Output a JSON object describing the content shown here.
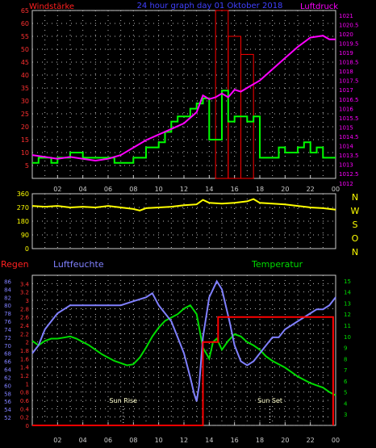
{
  "chart_data": [
    {
      "type": "line",
      "title": "24 hour graph day  01 Oktober 2018",
      "left_label": "Windstärke",
      "right_label": "Luftdruck",
      "x_ticks": [
        "02",
        "04",
        "06",
        "08",
        "10",
        "12",
        "14",
        "16",
        "18",
        "20",
        "22",
        "00"
      ],
      "x_range": [
        0,
        24
      ],
      "left_axis": {
        "range": [
          0,
          65
        ],
        "ticks": [
          5,
          10,
          15,
          20,
          25,
          30,
          35,
          40,
          45,
          50,
          55,
          60,
          65
        ]
      },
      "right_axis": {
        "range": [
          1012.25,
          1021.25
        ],
        "ticks": [
          "1012",
          "1012.5",
          "1013",
          "1013.5",
          "1014",
          "1014.5",
          "1015",
          "1015.5",
          "1016",
          "1016.5",
          "1017",
          "1017.5",
          "1018",
          "1018.5",
          "1019",
          "1019.5",
          "1020",
          "1020.5",
          "1021"
        ]
      },
      "series": [
        {
          "axis": "left",
          "color": "#00ff00",
          "x": [
            0,
            0.5,
            1,
            1.5,
            2,
            2.5,
            3,
            3.5,
            4,
            4.5,
            5,
            5.5,
            6,
            6.5,
            7,
            7.5,
            8,
            8.5,
            9,
            9.5,
            10,
            10.5,
            11,
            11.5,
            12,
            12.5,
            13,
            13.5,
            14,
            14.5,
            15,
            15.5,
            16,
            16.5,
            17,
            17.5,
            18,
            18.5,
            19,
            19.5,
            20,
            20.5,
            21,
            21.5,
            22,
            22.5,
            23,
            23.5,
            24
          ],
          "values": [
            6,
            8,
            8,
            6,
            8,
            8,
            10,
            10,
            8,
            8,
            8,
            8,
            8,
            6,
            6,
            6,
            8,
            8,
            12,
            12,
            14,
            18,
            22,
            24,
            24,
            27,
            29,
            31,
            15,
            15,
            34,
            22,
            24,
            24,
            22,
            24,
            8,
            8,
            8,
            12,
            10,
            10,
            12,
            14,
            10,
            12,
            8,
            8,
            8
          ]
        },
        {
          "axis": "left",
          "color": "#ff0000",
          "kind": "gust-bars",
          "x": [
            15,
            16,
            17
          ],
          "values": [
            65,
            55,
            48
          ]
        },
        {
          "axis": "right",
          "color": "#ff00ff",
          "x": [
            0,
            1,
            2,
            3,
            4,
            5,
            6,
            7,
            8,
            9,
            10,
            11,
            12,
            12.5,
            13,
            13.5,
            14,
            14.5,
            15,
            15.5,
            16,
            16.5,
            17,
            17.5,
            18,
            19,
            20,
            21,
            22,
            23,
            23.5,
            24
          ],
          "values": [
            1013.5,
            1013.4,
            1013.3,
            1013.4,
            1013.3,
            1013.2,
            1013.3,
            1013.5,
            1013.9,
            1014.3,
            1014.6,
            1014.9,
            1015.2,
            1015.5,
            1015.8,
            1016.7,
            1016.5,
            1016.6,
            1016.8,
            1016.6,
            1017.0,
            1016.9,
            1017.1,
            1017.3,
            1017.5,
            1018.1,
            1018.7,
            1019.3,
            1019.8,
            1019.9,
            1019.7,
            1019.7
          ]
        }
      ]
    },
    {
      "type": "line",
      "x_range": [
        0,
        24
      ],
      "left_axis": {
        "range": [
          0,
          360
        ],
        "ticks": [
          "0",
          "90",
          "180",
          "270",
          "360"
        ]
      },
      "right_labels": [
        "N",
        "W",
        "S",
        "O",
        "N"
      ],
      "series": [
        {
          "color": "#ffff00",
          "x": [
            0,
            1,
            2,
            3,
            4,
            5,
            6,
            7,
            8,
            8.5,
            9,
            10,
            11,
            12,
            13,
            13.5,
            14,
            15,
            16,
            17,
            17.5,
            18,
            19,
            20,
            21,
            22,
            23,
            24
          ],
          "values": [
            280,
            275,
            280,
            270,
            275,
            270,
            280,
            270,
            260,
            250,
            265,
            270,
            275,
            285,
            290,
            320,
            300,
            295,
            300,
            310,
            325,
            300,
            295,
            290,
            280,
            270,
            265,
            255
          ]
        }
      ]
    },
    {
      "type": "line",
      "x_range": [
        0,
        24
      ],
      "x_ticks": [
        "02",
        "04",
        "06",
        "08",
        "10",
        "12",
        "14",
        "16",
        "18",
        "20",
        "22",
        "00"
      ],
      "labels": {
        "left_red": "Regen",
        "left_blue": "Luftfeuchte",
        "right_green": "Temperatur"
      },
      "axes": {
        "rain": {
          "range": [
            0,
            3.6
          ],
          "ticks": [
            "0",
            "0.2",
            "0.4",
            "0.6",
            "0.8",
            "1",
            "1.2",
            "1.4",
            "1.6",
            "1.8",
            "2",
            "2.2",
            "2.4",
            "2.6",
            "2.8",
            "3",
            "3.2",
            "3.4"
          ]
        },
        "humidity": {
          "range": [
            50,
            87.5
          ],
          "ticks": [
            "52",
            "54",
            "56",
            "58",
            "60",
            "62",
            "64",
            "66",
            "68",
            "70",
            "72",
            "74",
            "76",
            "78",
            "80",
            "82",
            "84",
            "86"
          ]
        },
        "temperature": {
          "range": [
            2,
            15.5
          ],
          "ticks": [
            "3",
            "4",
            "5",
            "6",
            "7",
            "8",
            "9",
            "10",
            "11",
            "12",
            "13",
            "14",
            "15"
          ]
        }
      },
      "annotations": [
        {
          "label": "Sun Rise",
          "x": 7.2
        },
        {
          "label": "Sun Set",
          "x": 18.8
        }
      ],
      "series": [
        {
          "axis": "rain",
          "color": "#ff0000",
          "x": [
            0,
            13.5,
            13.5,
            14.7,
            14.7,
            23.8,
            23.8
          ],
          "values": [
            0,
            0,
            2.0,
            2.0,
            2.6,
            2.6,
            0
          ]
        },
        {
          "axis": "humidity",
          "color": "#8080ff",
          "x": [
            0,
            0.5,
            1,
            1.5,
            2,
            2.5,
            3,
            4,
            5,
            6,
            7,
            8,
            9,
            9.5,
            10,
            10.5,
            11,
            11.5,
            12,
            12.5,
            12.8,
            13,
            13.2,
            13.5,
            14,
            14.3,
            14.6,
            15,
            15.3,
            15.6,
            16,
            16.5,
            17,
            17.5,
            18,
            18.5,
            19,
            19.5,
            20,
            20.5,
            21,
            21.5,
            22,
            22.5,
            23,
            23.5,
            24
          ],
          "values": [
            68,
            70,
            74,
            76,
            78,
            79,
            80,
            80,
            80,
            80,
            80,
            81,
            82,
            83,
            80,
            78,
            76,
            72,
            68,
            62,
            58,
            56,
            60,
            72,
            82,
            84,
            86,
            84,
            80,
            76,
            70,
            66,
            65,
            66,
            68,
            70,
            72,
            72,
            74,
            75,
            76,
            77,
            78,
            79,
            79,
            80,
            82
          ]
        },
        {
          "axis": "temperature",
          "color": "#00dd00",
          "x": [
            0,
            0.5,
            1,
            1.5,
            2,
            2.5,
            3,
            3.5,
            4,
            4.5,
            5,
            5.5,
            6,
            6.5,
            7,
            7.5,
            8,
            8.5,
            9,
            9.5,
            10,
            10.5,
            11,
            11.5,
            12,
            12.5,
            13,
            13.5,
            14,
            14.3,
            14.6,
            15,
            15.5,
            16,
            16.5,
            17,
            17.5,
            18,
            18.5,
            19,
            19.5,
            20,
            20.5,
            21,
            21.5,
            22,
            22.5,
            23,
            23.5,
            24
          ],
          "values": [
            9.6,
            9.2,
            9.6,
            9.8,
            9.8,
            9.9,
            10.0,
            9.8,
            9.5,
            9.2,
            8.8,
            8.4,
            8.1,
            7.8,
            7.6,
            7.4,
            7.5,
            8.1,
            9.0,
            10.0,
            10.8,
            11.4,
            11.7,
            12.0,
            12.5,
            12.8,
            12.0,
            9.0,
            8.0,
            9.5,
            9.8,
            8.8,
            9.6,
            10.2,
            10.0,
            9.5,
            9.2,
            8.8,
            8.2,
            7.8,
            7.5,
            7.2,
            6.8,
            6.4,
            6.1,
            5.8,
            5.6,
            5.4,
            5.0,
            4.7
          ]
        }
      ]
    }
  ]
}
